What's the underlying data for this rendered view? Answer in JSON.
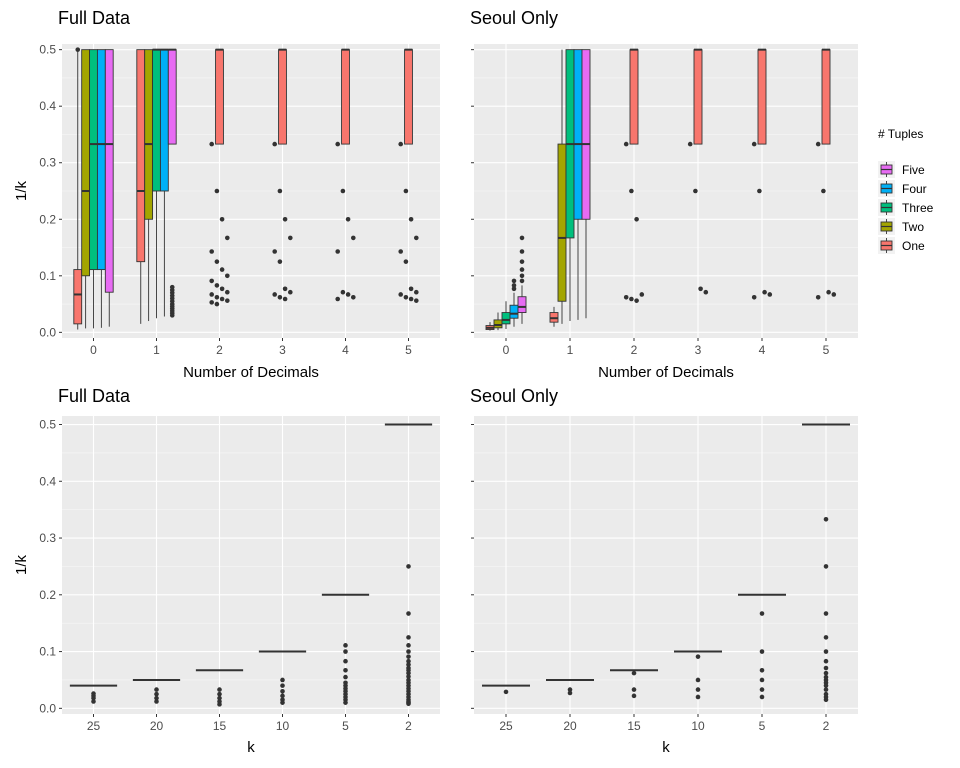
{
  "legend": {
    "title": "# Tuples",
    "items": [
      {
        "label": "Five",
        "color": "#E76BF3"
      },
      {
        "label": "Four",
        "color": "#00B0F6"
      },
      {
        "label": "Three",
        "color": "#00BF7D"
      },
      {
        "label": "Two",
        "color": "#A3A500"
      },
      {
        "label": "One",
        "color": "#F8766D"
      }
    ]
  },
  "chart_data": [
    {
      "type": "box",
      "title": "Full Data",
      "xlabel": "Number of Decimals",
      "ylabel": "1/k",
      "categories": [
        "0",
        "1",
        "2",
        "3",
        "4",
        "5"
      ],
      "ylim": [
        -0.01,
        0.51
      ],
      "yticks": [
        0.0,
        0.1,
        0.2,
        0.3,
        0.4,
        0.5
      ],
      "ytick_labels": [
        "0.0",
        "0.1",
        "0.2",
        "0.3",
        "0.4",
        "0.5"
      ],
      "groups": [
        "One",
        "Two",
        "Three",
        "Four",
        "Five"
      ],
      "boxes": [
        {
          "category": "0",
          "group": "One",
          "lower": 0.005,
          "q1": 0.015,
          "median": 0.067,
          "q3": 0.111,
          "upper": 0.5
        },
        {
          "category": "0",
          "group": "Two",
          "lower": 0.007,
          "q1": 0.1,
          "median": 0.25,
          "q3": 0.5,
          "upper": 0.5
        },
        {
          "category": "0",
          "group": "Three",
          "lower": 0.007,
          "q1": 0.111,
          "median": 0.333,
          "q3": 0.5,
          "upper": 0.5
        },
        {
          "category": "0",
          "group": "Four",
          "lower": 0.008,
          "q1": 0.111,
          "median": 0.333,
          "q3": 0.5,
          "upper": 0.5
        },
        {
          "category": "0",
          "group": "Five",
          "lower": 0.01,
          "q1": 0.071,
          "median": 0.333,
          "q3": 0.5,
          "upper": 0.5
        },
        {
          "category": "1",
          "group": "One",
          "lower": 0.015,
          "q1": 0.125,
          "median": 0.25,
          "q3": 0.5,
          "upper": 0.5
        },
        {
          "category": "1",
          "group": "Two",
          "lower": 0.02,
          "q1": 0.2,
          "median": 0.333,
          "q3": 0.5,
          "upper": 0.5
        },
        {
          "category": "1",
          "group": "Three",
          "lower": 0.025,
          "q1": 0.25,
          "median": 0.5,
          "q3": 0.5,
          "upper": 0.5
        },
        {
          "category": "1",
          "group": "Four",
          "lower": 0.028,
          "q1": 0.25,
          "median": 0.5,
          "q3": 0.5,
          "upper": 0.5
        },
        {
          "category": "1",
          "group": "Five",
          "lower": 0.333,
          "q1": 0.333,
          "median": 0.5,
          "q3": 0.5,
          "upper": 0.5
        },
        {
          "category": "2",
          "group": "One",
          "lower": 0.333,
          "q1": 0.333,
          "median": 0.5,
          "q3": 0.5,
          "upper": 0.5
        },
        {
          "category": "3",
          "group": "One",
          "lower": 0.333,
          "q1": 0.333,
          "median": 0.5,
          "q3": 0.5,
          "upper": 0.5
        },
        {
          "category": "4",
          "group": "One",
          "lower": 0.333,
          "q1": 0.333,
          "median": 0.5,
          "q3": 0.5,
          "upper": 0.5
        },
        {
          "category": "5",
          "group": "One",
          "lower": 0.333,
          "q1": 0.333,
          "median": 0.5,
          "q3": 0.5,
          "upper": 0.5
        }
      ],
      "outliers": [
        {
          "category": "0",
          "group": "One",
          "values": [
            0.5
          ]
        },
        {
          "category": "1",
          "group": "Five",
          "values": [
            0.03,
            0.034,
            0.038,
            0.042,
            0.046,
            0.05,
            0.055,
            0.06,
            0.065,
            0.07,
            0.075,
            0.08
          ]
        },
        {
          "category": "2",
          "group": "One",
          "values": [
            0.333,
            0.25,
            0.2,
            0.167,
            0.143,
            0.125,
            0.111,
            0.1,
            0.091,
            0.083,
            0.077,
            0.071,
            0.067,
            0.062,
            0.059,
            0.056,
            0.053,
            0.05
          ]
        },
        {
          "category": "3",
          "group": "One",
          "values": [
            0.333,
            0.25,
            0.2,
            0.167,
            0.143,
            0.125,
            0.077,
            0.071,
            0.067,
            0.062,
            0.059
          ]
        },
        {
          "category": "4",
          "group": "One",
          "values": [
            0.333,
            0.25,
            0.2,
            0.167,
            0.143,
            0.071,
            0.067,
            0.062,
            0.059
          ]
        },
        {
          "category": "5",
          "group": "One",
          "values": [
            0.333,
            0.25,
            0.2,
            0.167,
            0.143,
            0.125,
            0.077,
            0.071,
            0.067,
            0.062,
            0.059,
            0.056
          ]
        }
      ]
    },
    {
      "type": "box",
      "title": "Seoul Only",
      "xlabel": "Number of Decimals",
      "ylabel": "",
      "categories": [
        "0",
        "1",
        "2",
        "3",
        "4",
        "5"
      ],
      "ylim": [
        -0.01,
        0.51
      ],
      "yticks": [
        0.0,
        0.1,
        0.2,
        0.3,
        0.4,
        0.5
      ],
      "ytick_labels": [
        "0.0",
        "0.1",
        "0.2",
        "0.3",
        "0.4",
        "0.5"
      ],
      "groups": [
        "One",
        "Two",
        "Three",
        "Four",
        "Five"
      ],
      "boxes": [
        {
          "category": "0",
          "group": "One",
          "lower": 0.003,
          "q1": 0.005,
          "median": 0.008,
          "q3": 0.012,
          "upper": 0.018
        },
        {
          "category": "0",
          "group": "Two",
          "lower": 0.004,
          "q1": 0.008,
          "median": 0.013,
          "q3": 0.022,
          "upper": 0.035
        },
        {
          "category": "0",
          "group": "Three",
          "lower": 0.006,
          "q1": 0.015,
          "median": 0.022,
          "q3": 0.035,
          "upper": 0.055
        },
        {
          "category": "0",
          "group": "Four",
          "lower": 0.01,
          "q1": 0.025,
          "median": 0.033,
          "q3": 0.048,
          "upper": 0.07
        },
        {
          "category": "0",
          "group": "Five",
          "lower": 0.015,
          "q1": 0.035,
          "median": 0.045,
          "q3": 0.063,
          "upper": 0.083
        },
        {
          "category": "1",
          "group": "One",
          "lower": 0.01,
          "q1": 0.018,
          "median": 0.025,
          "q3": 0.035,
          "upper": 0.045
        },
        {
          "category": "1",
          "group": "Two",
          "lower": 0.015,
          "q1": 0.055,
          "median": 0.167,
          "q3": 0.333,
          "upper": 0.5
        },
        {
          "category": "1",
          "group": "Three",
          "lower": 0.02,
          "q1": 0.167,
          "median": 0.333,
          "q3": 0.5,
          "upper": 0.5
        },
        {
          "category": "1",
          "group": "Four",
          "lower": 0.022,
          "q1": 0.2,
          "median": 0.333,
          "q3": 0.5,
          "upper": 0.5
        },
        {
          "category": "1",
          "group": "Five",
          "lower": 0.025,
          "q1": 0.2,
          "median": 0.333,
          "q3": 0.5,
          "upper": 0.5
        },
        {
          "category": "2",
          "group": "One",
          "lower": 0.333,
          "q1": 0.333,
          "median": 0.5,
          "q3": 0.5,
          "upper": 0.5
        },
        {
          "category": "3",
          "group": "One",
          "lower": 0.333,
          "q1": 0.333,
          "median": 0.5,
          "q3": 0.5,
          "upper": 0.5
        },
        {
          "category": "4",
          "group": "One",
          "lower": 0.333,
          "q1": 0.333,
          "median": 0.5,
          "q3": 0.5,
          "upper": 0.5
        },
        {
          "category": "5",
          "group": "One",
          "lower": 0.333,
          "q1": 0.333,
          "median": 0.5,
          "q3": 0.5,
          "upper": 0.5
        }
      ],
      "outliers": [
        {
          "category": "0",
          "group": "Four",
          "values": [
            0.077,
            0.083,
            0.091
          ]
        },
        {
          "category": "0",
          "group": "Five",
          "values": [
            0.091,
            0.1,
            0.111,
            0.125,
            0.143,
            0.167
          ]
        },
        {
          "category": "2",
          "group": "One",
          "values": [
            0.333,
            0.25,
            0.2,
            0.067,
            0.062,
            0.059,
            0.056
          ]
        },
        {
          "category": "3",
          "group": "One",
          "values": [
            0.333,
            0.25,
            0.077,
            0.071
          ]
        },
        {
          "category": "4",
          "group": "One",
          "values": [
            0.333,
            0.25,
            0.071,
            0.067,
            0.062
          ]
        },
        {
          "category": "5",
          "group": "One",
          "values": [
            0.333,
            0.25,
            0.071,
            0.067,
            0.062
          ]
        }
      ]
    },
    {
      "type": "box",
      "title": "Full Data",
      "xlabel": "k",
      "ylabel": "1/k",
      "categories": [
        "25",
        "20",
        "15",
        "10",
        "5",
        "2"
      ],
      "ylim": [
        -0.01,
        0.515
      ],
      "yticks": [
        0.0,
        0.1,
        0.2,
        0.3,
        0.4,
        0.5
      ],
      "ytick_labels": [
        "0.0",
        "0.1",
        "0.2",
        "0.3",
        "0.4",
        "0.5"
      ],
      "medians": [
        0.04,
        0.05,
        0.067,
        0.1,
        0.2,
        0.5
      ],
      "outliers": [
        {
          "category": "25",
          "values": [
            0.026,
            0.022,
            0.018,
            0.012
          ]
        },
        {
          "category": "20",
          "values": [
            0.033,
            0.025,
            0.018,
            0.012
          ]
        },
        {
          "category": "15",
          "values": [
            0.033,
            0.025,
            0.018,
            0.012,
            0.007
          ]
        },
        {
          "category": "10",
          "values": [
            0.05,
            0.04,
            0.03,
            0.022,
            0.015,
            0.01
          ]
        },
        {
          "category": "5",
          "values": [
            0.111,
            0.1,
            0.083,
            0.067,
            0.055,
            0.045,
            0.04,
            0.035,
            0.03,
            0.025,
            0.02,
            0.015,
            0.01
          ]
        },
        {
          "category": "2",
          "values": [
            0.25,
            0.167,
            0.125,
            0.111,
            0.1,
            0.091,
            0.083,
            0.077,
            0.071,
            0.067,
            0.062,
            0.056,
            0.05,
            0.045,
            0.04,
            0.035,
            0.03,
            0.025,
            0.02,
            0.015,
            0.012,
            0.01,
            0.008
          ]
        }
      ]
    },
    {
      "type": "box",
      "title": "Seoul Only",
      "xlabel": "k",
      "ylabel": "",
      "categories": [
        "25",
        "20",
        "15",
        "10",
        "5",
        "2"
      ],
      "ylim": [
        -0.01,
        0.515
      ],
      "yticks": [
        0.0,
        0.1,
        0.2,
        0.3,
        0.4,
        0.5
      ],
      "ytick_labels": [
        "0.0",
        "0.1",
        "0.2",
        "0.3",
        "0.4",
        "0.5"
      ],
      "medians": [
        0.04,
        0.05,
        0.067,
        0.1,
        0.2,
        0.5
      ],
      "outliers": [
        {
          "category": "25",
          "values": [
            0.029
          ]
        },
        {
          "category": "20",
          "values": [
            0.033,
            0.027
          ]
        },
        {
          "category": "15",
          "values": [
            0.062,
            0.033,
            0.022
          ]
        },
        {
          "category": "10",
          "values": [
            0.091,
            0.05,
            0.033,
            0.02
          ]
        },
        {
          "category": "5",
          "values": [
            0.167,
            0.1,
            0.067,
            0.05,
            0.033,
            0.02
          ]
        },
        {
          "category": "2",
          "values": [
            0.333,
            0.25,
            0.167,
            0.125,
            0.1,
            0.083,
            0.071,
            0.062,
            0.055,
            0.05,
            0.045,
            0.04,
            0.033,
            0.025,
            0.02,
            0.015
          ]
        }
      ]
    }
  ]
}
